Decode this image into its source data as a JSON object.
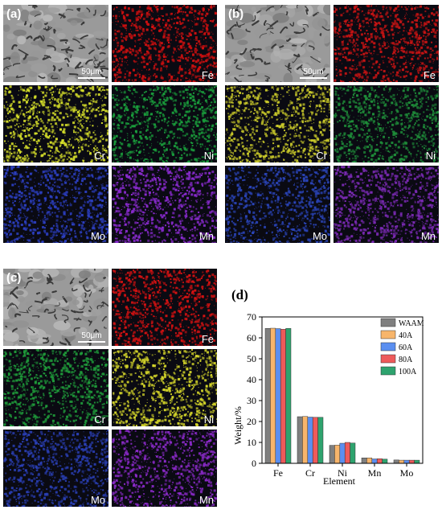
{
  "panels": [
    {
      "label": "(a)",
      "scale": "50μm",
      "maps": [
        {
          "element": "Fe",
          "color": "#d01010"
        },
        {
          "element": "Cr",
          "color": "#d6df2a"
        },
        {
          "element": "Ni",
          "color": "#1a9e3c"
        },
        {
          "element": "Mo",
          "color": "#2c3fc2"
        },
        {
          "element": "Mn",
          "color": "#8a2bd0"
        }
      ]
    },
    {
      "label": "(b)",
      "scale": "50μm",
      "maps": [
        {
          "element": "Fe",
          "color": "#c81414"
        },
        {
          "element": "Cr",
          "color": "#c8c82a"
        },
        {
          "element": "Ni",
          "color": "#1f8f3a"
        },
        {
          "element": "Mo",
          "color": "#2a44b8"
        },
        {
          "element": "Mn",
          "color": "#7b2ab5"
        }
      ]
    },
    {
      "label": "(c)",
      "scale": "50μm",
      "maps": [
        {
          "element": "Fe",
          "color": "#d41212"
        },
        {
          "element": "Cr",
          "color": "#1f9a3a"
        },
        {
          "element": "Ni",
          "color": "#d4d52a"
        },
        {
          "element": "Mo",
          "color": "#2a3fb5"
        },
        {
          "element": "Mn",
          "color": "#8a2ac8"
        }
      ]
    }
  ],
  "chart_label": "(d)",
  "chart_data": {
    "type": "bar",
    "categories": [
      "Fe",
      "Cr",
      "Ni",
      "Mn",
      "Mo"
    ],
    "xlabel": "Element",
    "ylabel": "Weight/%",
    "ylim": [
      0,
      70
    ],
    "yticks": [
      0,
      10,
      20,
      30,
      40,
      50,
      60,
      70
    ],
    "legend_position": "top-right",
    "series": [
      {
        "name": "WAAM",
        "color": "#7f7f7f",
        "values": [
          64.5,
          22.3,
          8.6,
          2.6,
          1.6
        ]
      },
      {
        "name": "40A",
        "color": "#f7b56b",
        "values": [
          64.6,
          22.4,
          8.7,
          2.6,
          1.5
        ]
      },
      {
        "name": "60A",
        "color": "#5b8ff0",
        "values": [
          64.4,
          22.1,
          9.6,
          2.1,
          1.5
        ]
      },
      {
        "name": "80A",
        "color": "#ee5a5a",
        "values": [
          64.1,
          22.0,
          10.0,
          2.2,
          1.5
        ]
      },
      {
        "name": "100A",
        "color": "#2ea36e",
        "values": [
          64.5,
          22.0,
          9.7,
          2.0,
          1.5
        ]
      }
    ]
  }
}
